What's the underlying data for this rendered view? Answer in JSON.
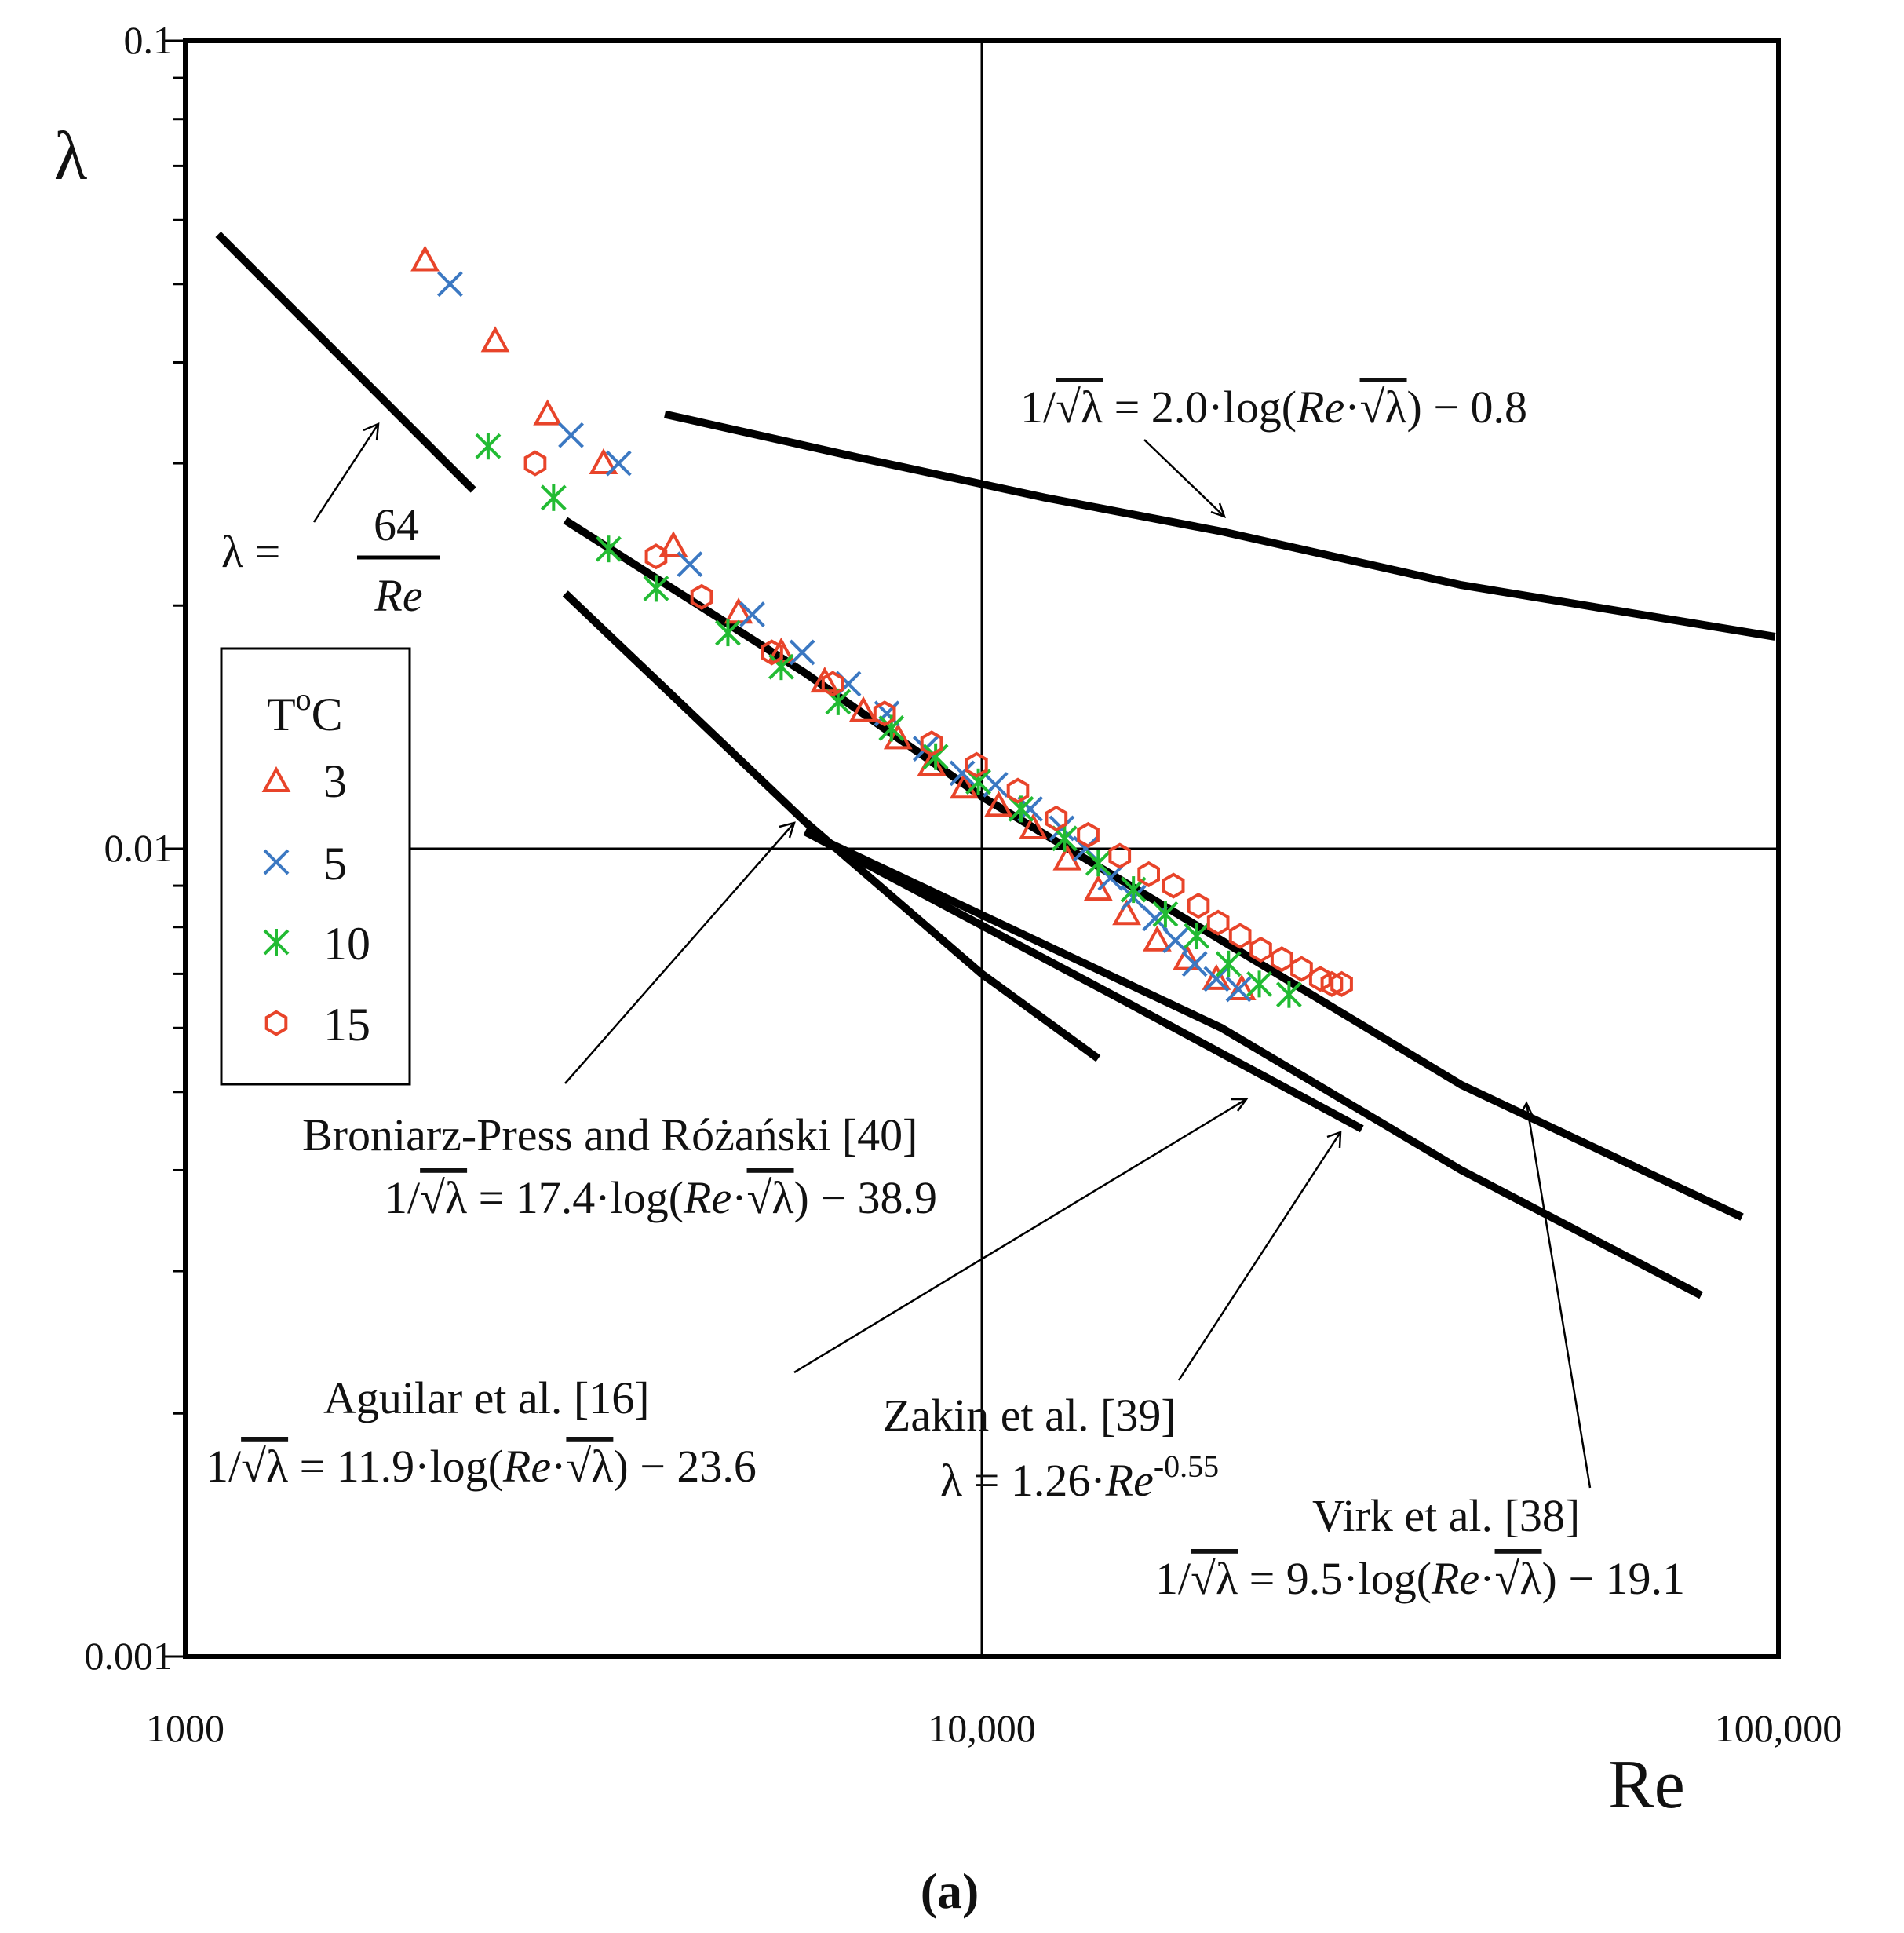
{
  "chart_data": {
    "type": "scatter",
    "caption": "(a)",
    "xlabel": "Re",
    "ylabel": "λ",
    "xscale": "log",
    "yscale": "log",
    "xlim": [
      1000,
      100000
    ],
    "ylim": [
      0.001,
      0.1
    ],
    "x_ticks": [
      {
        "value": 1000,
        "label": "1000"
      },
      {
        "value": 10000,
        "label": "10,000"
      },
      {
        "value": 100000,
        "label": "100,000"
      }
    ],
    "y_ticks": [
      {
        "value": 0.001,
        "label": "0.001"
      },
      {
        "value": 0.01,
        "label": "0.01"
      },
      {
        "value": 0.1,
        "label": "0.1"
      }
    ],
    "legend": {
      "title": "ToC",
      "title_main": "T",
      "title_sup": "o",
      "title_end": "C",
      "placement": "middle-left",
      "entries": [
        "3",
        "5",
        "10",
        "15"
      ]
    },
    "series": [
      {
        "name": "3",
        "marker": "triangle",
        "color": "#e8442a",
        "points": [
          [
            2000,
            0.0535
          ],
          [
            2450,
            0.0425
          ],
          [
            2850,
            0.0345
          ],
          [
            3350,
            0.03
          ],
          [
            4100,
            0.0237
          ],
          [
            4950,
            0.0196
          ],
          [
            5600,
            0.0175
          ],
          [
            6350,
            0.0161
          ],
          [
            7100,
            0.0148
          ],
          [
            7850,
            0.0137
          ],
          [
            8650,
            0.0127
          ],
          [
            9500,
            0.0119
          ],
          [
            10500,
            0.0113
          ],
          [
            11600,
            0.0106
          ],
          [
            12800,
            0.0097
          ],
          [
            14000,
            0.0089
          ],
          [
            15200,
            0.0083
          ],
          [
            16600,
            0.0077
          ],
          [
            18100,
            0.0073
          ],
          [
            19700,
            0.0069
          ],
          [
            21200,
            0.0067
          ]
        ]
      },
      {
        "name": "5",
        "marker": "x",
        "color": "#3b78c2",
        "points": [
          [
            2150,
            0.05
          ],
          [
            3050,
            0.0325
          ],
          [
            3500,
            0.03
          ],
          [
            4300,
            0.0225
          ],
          [
            5150,
            0.0195
          ],
          [
            5950,
            0.0175
          ],
          [
            6800,
            0.016
          ],
          [
            7600,
            0.0147
          ],
          [
            8500,
            0.0133
          ],
          [
            9450,
            0.0124
          ],
          [
            10400,
            0.012
          ],
          [
            11500,
            0.0112
          ],
          [
            12600,
            0.0106
          ],
          [
            13500,
            0.01
          ],
          [
            14500,
            0.0092
          ],
          [
            15500,
            0.0087
          ],
          [
            16500,
            0.0082
          ],
          [
            17500,
            0.0077
          ],
          [
            18500,
            0.0072
          ],
          [
            19700,
            0.0069
          ],
          [
            21000,
            0.0067
          ]
        ]
      },
      {
        "name": "10",
        "marker": "asterisk",
        "color": "#22bb33",
        "points": [
          [
            2400,
            0.0315
          ],
          [
            2900,
            0.0272
          ],
          [
            3400,
            0.0235
          ],
          [
            3900,
            0.021
          ],
          [
            4800,
            0.0185
          ],
          [
            5600,
            0.0168
          ],
          [
            6600,
            0.0152
          ],
          [
            7700,
            0.0141
          ],
          [
            8750,
            0.013
          ],
          [
            9900,
            0.0121
          ],
          [
            11200,
            0.0112
          ],
          [
            12700,
            0.0103
          ],
          [
            14000,
            0.0096
          ],
          [
            15500,
            0.0089
          ],
          [
            17000,
            0.0083
          ],
          [
            18600,
            0.0078
          ],
          [
            20400,
            0.0072
          ],
          [
            22300,
            0.0068
          ],
          [
            24300,
            0.0066
          ]
        ]
      },
      {
        "name": "15",
        "marker": "hexagon",
        "color": "#e8442a",
        "points": [
          [
            2750,
            0.03
          ],
          [
            3900,
            0.023
          ],
          [
            4450,
            0.0205
          ],
          [
            5450,
            0.0175
          ],
          [
            6500,
            0.016
          ],
          [
            7550,
            0.0147
          ],
          [
            8650,
            0.0135
          ],
          [
            9850,
            0.0127
          ],
          [
            11100,
            0.0118
          ],
          [
            12400,
            0.0109
          ],
          [
            13600,
            0.0104
          ],
          [
            14900,
            0.0098
          ],
          [
            16200,
            0.0093
          ],
          [
            17400,
            0.009
          ],
          [
            18700,
            0.0085
          ],
          [
            19800,
            0.0081
          ],
          [
            21100,
            0.0078
          ],
          [
            22400,
            0.0075
          ],
          [
            23800,
            0.0073
          ],
          [
            25200,
            0.0071
          ],
          [
            26600,
            0.0069
          ],
          [
            27500,
            0.0068
          ],
          [
            28300,
            0.0068
          ]
        ]
      }
    ],
    "lines": [
      {
        "name": "laminar-64-over-Re",
        "points": [
          [
            1100,
            0.0576
          ],
          [
            2300,
            0.0278
          ]
        ]
      },
      {
        "name": "virk-asymptote",
        "points": [
          [
            3000,
            0.0255
          ],
          [
            6000,
            0.0165
          ],
          [
            10000,
            0.0116
          ],
          [
            20000,
            0.0077
          ],
          [
            40000,
            0.0051
          ],
          [
            90000,
            0.0035
          ]
        ]
      },
      {
        "name": "maximum-drag-reduction-2.0",
        "points": [
          [
            4000,
            0.0345
          ],
          [
            7000,
            0.0305
          ],
          [
            12000,
            0.0272
          ],
          [
            20000,
            0.0247
          ],
          [
            40000,
            0.0212
          ],
          [
            99000,
            0.0183
          ]
        ]
      },
      {
        "name": "broniarz-press",
        "points": [
          [
            3000,
            0.0207
          ],
          [
            6000,
            0.0108
          ],
          [
            10000,
            0.007
          ],
          [
            14000,
            0.0055
          ]
        ]
      },
      {
        "name": "zakin",
        "points": [
          [
            6000,
            0.0105
          ],
          [
            15000,
            0.0065
          ],
          [
            30000,
            0.0045
          ]
        ]
      },
      {
        "name": "aguilar",
        "points": [
          [
            6000,
            0.0105
          ],
          [
            20000,
            0.006
          ],
          [
            40000,
            0.004
          ],
          [
            80000,
            0.0028
          ]
        ]
      }
    ],
    "annotations": [
      {
        "name": "laminar",
        "text": "λ = 64/Re",
        "lhs": "λ =",
        "num": "64",
        "den": "Re"
      },
      {
        "name": "max-dr",
        "text": "1/√λ = 2.0·log(Re·√λ) − 0.8",
        "p1": "1/",
        "r1": "√λ",
        "p2": " = 2.0·log(",
        "it": "Re",
        "p3": "·",
        "r2": "√λ",
        "p4": ") − 0.8"
      },
      {
        "name": "broniarz",
        "label": "Broniarz-Press and Różański [40]",
        "text": "1/√λ = 17.4·log(Re·√λ) − 38.9",
        "p1": "1/",
        "r1": "√λ",
        "p2": " = 17.4·log(",
        "it": "Re",
        "p3": "·",
        "r2": "√λ",
        "p4": ") − 38.9"
      },
      {
        "name": "aguilar",
        "label": "Aguilar et al. [16]",
        "text": "1/√λ = 11.9·log(Re·√λ) − 23.6",
        "p1": "1/",
        "r1": "√λ",
        "p2": " = 11.9·log(",
        "it": "Re",
        "p3": "·",
        "r2": "√λ",
        "p4": ") − 23.6"
      },
      {
        "name": "zakin",
        "label": "Zakin et al. [39]",
        "text": "λ = 1.26·Re^-0.55",
        "p1": "λ = 1.26·",
        "it": "Re",
        "sup": "-0.55"
      },
      {
        "name": "virk",
        "label": "Virk et al. [38]",
        "text": "1/√λ = 9.5·log(Re·√λ) − 19.1",
        "p1": "1/",
        "r1": "√λ",
        "p2": " = 9.5·log(",
        "it": "Re",
        "p3": "·",
        "r2": "√λ",
        "p4": ") − 19.1"
      }
    ]
  }
}
